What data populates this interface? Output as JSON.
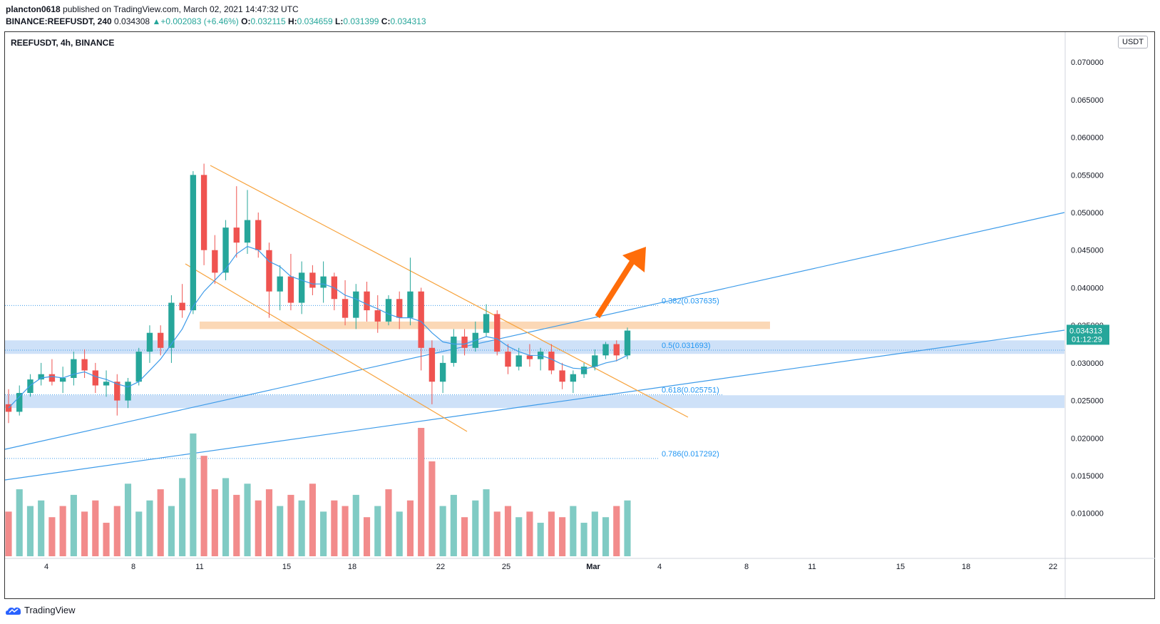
{
  "header": {
    "author": "plancton0618",
    "published_text": "published on TradingView.com, March 02, 2021 14:47:32 UTC",
    "ticker_line": "BINANCE:REEFUSDT, 240",
    "last": "0.034308",
    "change": "+0.002083 (+6.46%)",
    "o_label": "O:",
    "o": "0.032115",
    "h_label": "H:",
    "h": "0.034659",
    "l_label": "L:",
    "l": "0.031399",
    "c_label": "C:",
    "c": "0.034313",
    "up_arrow": "▲"
  },
  "symbol_title": "REEFUSDT, 4h, BINANCE",
  "currency_badge": "USDT",
  "price_badge": {
    "price": "0.034313",
    "countdown": "01:12:29"
  },
  "footer": {
    "logo_text": "TradingView"
  },
  "colors": {
    "up": "#26a69a",
    "down": "#ef5350",
    "vol_up": "#80cbc4",
    "vol_down": "#f28b8b",
    "ma": "#3d9be9",
    "channel": "#f7a23b",
    "trendline": "#3d9be9",
    "zone_blue": "#c5dcf7",
    "zone_orange": "#fbd4ae",
    "arrow": "#ff6d0a"
  },
  "chart_data": {
    "type": "candlestick",
    "interval": "4h",
    "price_axis": {
      "ylim": [
        0.004,
        0.074
      ],
      "ticks": [
        "0.010000",
        "0.015000",
        "0.020000",
        "0.025000",
        "0.030000",
        "0.035000",
        "0.040000",
        "0.045000",
        "0.050000",
        "0.055000",
        "0.060000",
        "0.065000",
        "0.070000"
      ]
    },
    "time_axis": {
      "labels": [
        "4",
        "8",
        "11",
        "15",
        "18",
        "22",
        "25",
        "Mar",
        "4",
        "8",
        "11",
        "15",
        "18",
        "22"
      ]
    },
    "candles_sampled": [
      {
        "o": 0.0245,
        "h": 0.0265,
        "l": 0.022,
        "c": 0.0235
      },
      {
        "o": 0.0235,
        "h": 0.027,
        "l": 0.023,
        "c": 0.026
      },
      {
        "o": 0.026,
        "h": 0.0285,
        "l": 0.0255,
        "c": 0.0278
      },
      {
        "o": 0.0278,
        "h": 0.03,
        "l": 0.027,
        "c": 0.0285
      },
      {
        "o": 0.0285,
        "h": 0.0305,
        "l": 0.027,
        "c": 0.0275
      },
      {
        "o": 0.0275,
        "h": 0.0295,
        "l": 0.026,
        "c": 0.028
      },
      {
        "o": 0.028,
        "h": 0.0315,
        "l": 0.027,
        "c": 0.0305
      },
      {
        "o": 0.0305,
        "h": 0.0318,
        "l": 0.028,
        "c": 0.029
      },
      {
        "o": 0.029,
        "h": 0.03,
        "l": 0.026,
        "c": 0.027
      },
      {
        "o": 0.027,
        "h": 0.029,
        "l": 0.0255,
        "c": 0.0275
      },
      {
        "o": 0.0275,
        "h": 0.0285,
        "l": 0.023,
        "c": 0.025
      },
      {
        "o": 0.025,
        "h": 0.028,
        "l": 0.024,
        "c": 0.0275
      },
      {
        "o": 0.0275,
        "h": 0.032,
        "l": 0.027,
        "c": 0.0315
      },
      {
        "o": 0.0315,
        "h": 0.035,
        "l": 0.03,
        "c": 0.034
      },
      {
        "o": 0.034,
        "h": 0.035,
        "l": 0.031,
        "c": 0.032
      },
      {
        "o": 0.032,
        "h": 0.039,
        "l": 0.03,
        "c": 0.038
      },
      {
        "o": 0.038,
        "h": 0.0405,
        "l": 0.036,
        "c": 0.037
      },
      {
        "o": 0.037,
        "h": 0.0555,
        "l": 0.0365,
        "c": 0.055
      },
      {
        "o": 0.055,
        "h": 0.0565,
        "l": 0.043,
        "c": 0.045
      },
      {
        "o": 0.045,
        "h": 0.047,
        "l": 0.0405,
        "c": 0.042
      },
      {
        "o": 0.042,
        "h": 0.049,
        "l": 0.041,
        "c": 0.048
      },
      {
        "o": 0.048,
        "h": 0.0535,
        "l": 0.044,
        "c": 0.046
      },
      {
        "o": 0.046,
        "h": 0.053,
        "l": 0.0445,
        "c": 0.049
      },
      {
        "o": 0.049,
        "h": 0.05,
        "l": 0.044,
        "c": 0.045
      },
      {
        "o": 0.045,
        "h": 0.046,
        "l": 0.036,
        "c": 0.0395
      },
      {
        "o": 0.0395,
        "h": 0.043,
        "l": 0.037,
        "c": 0.0415
      },
      {
        "o": 0.0415,
        "h": 0.0445,
        "l": 0.037,
        "c": 0.038
      },
      {
        "o": 0.038,
        "h": 0.0435,
        "l": 0.0365,
        "c": 0.042
      },
      {
        "o": 0.042,
        "h": 0.043,
        "l": 0.039,
        "c": 0.04
      },
      {
        "o": 0.04,
        "h": 0.0435,
        "l": 0.038,
        "c": 0.0415
      },
      {
        "o": 0.0415,
        "h": 0.042,
        "l": 0.037,
        "c": 0.0385
      },
      {
        "o": 0.0385,
        "h": 0.041,
        "l": 0.035,
        "c": 0.036
      },
      {
        "o": 0.036,
        "h": 0.0405,
        "l": 0.0345,
        "c": 0.0395
      },
      {
        "o": 0.0395,
        "h": 0.0408,
        "l": 0.0355,
        "c": 0.037
      },
      {
        "o": 0.037,
        "h": 0.039,
        "l": 0.034,
        "c": 0.0355
      },
      {
        "o": 0.0355,
        "h": 0.039,
        "l": 0.035,
        "c": 0.0385
      },
      {
        "o": 0.0385,
        "h": 0.0395,
        "l": 0.0345,
        "c": 0.036
      },
      {
        "o": 0.036,
        "h": 0.044,
        "l": 0.035,
        "c": 0.0395
      },
      {
        "o": 0.0395,
        "h": 0.04,
        "l": 0.029,
        "c": 0.032
      },
      {
        "o": 0.032,
        "h": 0.033,
        "l": 0.0245,
        "c": 0.0275
      },
      {
        "o": 0.0275,
        "h": 0.031,
        "l": 0.026,
        "c": 0.03
      },
      {
        "o": 0.03,
        "h": 0.0345,
        "l": 0.0295,
        "c": 0.0335
      },
      {
        "o": 0.0335,
        "h": 0.0345,
        "l": 0.031,
        "c": 0.032
      },
      {
        "o": 0.032,
        "h": 0.0355,
        "l": 0.0315,
        "c": 0.034
      },
      {
        "o": 0.034,
        "h": 0.0378,
        "l": 0.0335,
        "c": 0.0365
      },
      {
        "o": 0.0365,
        "h": 0.037,
        "l": 0.031,
        "c": 0.0315
      },
      {
        "o": 0.0315,
        "h": 0.0325,
        "l": 0.0285,
        "c": 0.0295
      },
      {
        "o": 0.0295,
        "h": 0.032,
        "l": 0.029,
        "c": 0.031
      },
      {
        "o": 0.031,
        "h": 0.0325,
        "l": 0.0295,
        "c": 0.0305
      },
      {
        "o": 0.0305,
        "h": 0.032,
        "l": 0.029,
        "c": 0.0315
      },
      {
        "o": 0.0315,
        "h": 0.0325,
        "l": 0.0285,
        "c": 0.029
      },
      {
        "o": 0.029,
        "h": 0.03,
        "l": 0.0265,
        "c": 0.0275
      },
      {
        "o": 0.0275,
        "h": 0.029,
        "l": 0.026,
        "c": 0.0285
      },
      {
        "o": 0.0285,
        "h": 0.03,
        "l": 0.028,
        "c": 0.0295
      },
      {
        "o": 0.0295,
        "h": 0.0318,
        "l": 0.029,
        "c": 0.031
      },
      {
        "o": 0.031,
        "h": 0.0328,
        "l": 0.0305,
        "c": 0.0325
      },
      {
        "o": 0.0325,
        "h": 0.033,
        "l": 0.0302,
        "c": 0.031
      },
      {
        "o": 0.031,
        "h": 0.0347,
        "l": 0.0305,
        "c": 0.0343
      }
    ],
    "ma_line": [
      0.024,
      0.0255,
      0.027,
      0.028,
      0.0282,
      0.028,
      0.0285,
      0.0288,
      0.0282,
      0.0278,
      0.0272,
      0.0268,
      0.0275,
      0.029,
      0.0305,
      0.0325,
      0.0345,
      0.0375,
      0.0395,
      0.041,
      0.0425,
      0.0445,
      0.0455,
      0.045,
      0.0435,
      0.0428,
      0.0415,
      0.041,
      0.0405,
      0.0405,
      0.04,
      0.039,
      0.0385,
      0.0378,
      0.0372,
      0.0365,
      0.036,
      0.036,
      0.0355,
      0.034,
      0.0328,
      0.0325,
      0.0325,
      0.033,
      0.0335,
      0.0332,
      0.0322,
      0.0315,
      0.031,
      0.031,
      0.0305,
      0.0298,
      0.0293,
      0.0292,
      0.0295,
      0.03,
      0.0303,
      0.031
    ],
    "volumes": [
      8,
      12,
      9,
      10,
      7,
      9,
      11,
      8,
      10,
      6,
      9,
      13,
      8,
      10,
      12,
      9,
      14,
      22,
      18,
      12,
      14,
      11,
      13,
      10,
      12,
      9,
      11,
      10,
      13,
      8,
      10,
      9,
      11,
      7,
      9,
      12,
      8,
      10,
      23,
      17,
      9,
      11,
      7,
      10,
      12,
      8,
      9,
      7,
      8,
      6,
      8,
      7,
      9,
      6,
      8,
      7,
      9,
      10
    ],
    "volume_up": [
      false,
      true,
      true,
      true,
      false,
      false,
      true,
      false,
      false,
      false,
      false,
      true,
      true,
      true,
      false,
      true,
      true,
      true,
      false,
      false,
      true,
      false,
      true,
      false,
      false,
      true,
      false,
      true,
      false,
      true,
      false,
      false,
      true,
      false,
      true,
      false,
      true,
      false,
      false,
      false,
      true,
      true,
      false,
      true,
      true,
      false,
      false,
      true,
      false,
      true,
      false,
      false,
      true,
      true,
      true,
      true,
      false,
      true
    ],
    "annotations": {
      "fib_382": "0.382(0.037635)",
      "fib_5": "0.5(0.031693)",
      "fib_618": "0.618(0.025751)",
      "fib_786": "0.786(0.017292)",
      "fib_382_price": 0.037635,
      "fib_5_price": 0.031693,
      "fib_618_price": 0.025751,
      "fib_786_price": 0.017292,
      "zone_orange": [
        0.0345,
        0.0355
      ],
      "zone_blue_upper": [
        0.0312,
        0.033
      ],
      "zone_blue_lower": [
        0.024,
        0.0257
      ]
    }
  }
}
